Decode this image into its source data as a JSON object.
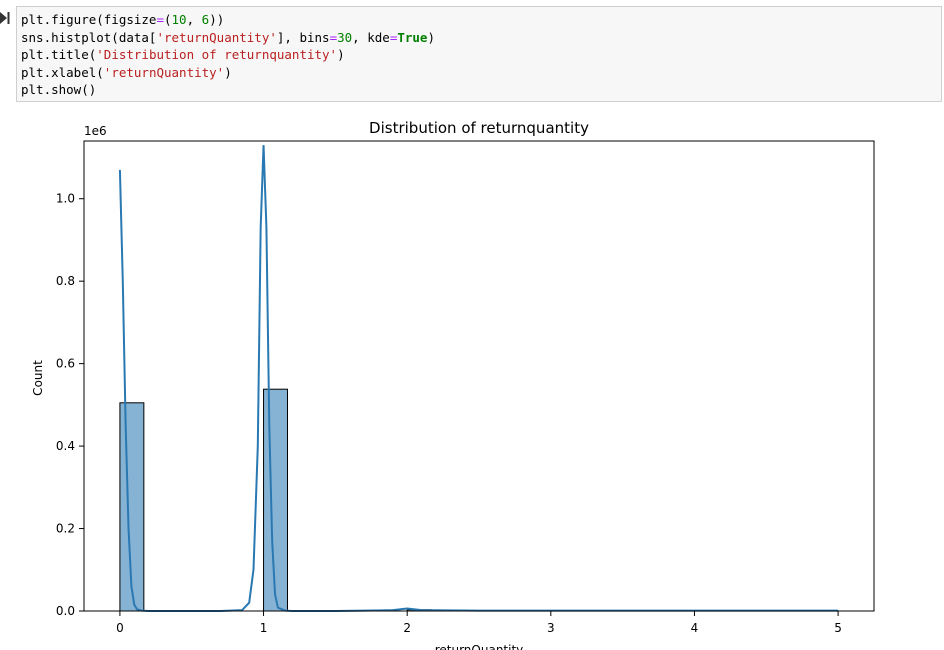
{
  "notebook": {
    "code_lines": [
      [
        "plt.figure(figsize",
        "=",
        "(",
        "10",
        ", ",
        "6",
        "))"
      ],
      [
        "sns.histplot(data[",
        "'returnQuantity'",
        "], bins",
        "=",
        "30",
        ", kde",
        "=",
        "True",
        ")"
      ],
      [
        "plt.title(",
        "'Distribution of returnquantity'",
        ")"
      ],
      [
        "plt.xlabel(",
        "'returnQuantity'",
        ")"
      ],
      [
        "plt.show()"
      ]
    ]
  },
  "chart_data": {
    "type": "bar",
    "title": "Distribution of returnquantity",
    "xlabel": "returnQuantity",
    "ylabel": "Count",
    "y_offset_label": "1e6",
    "x_ticks": [
      0,
      1,
      2,
      3,
      4,
      5
    ],
    "y_ticks": [
      "0.0",
      "0.2",
      "0.4",
      "0.6",
      "0.8",
      "1.0"
    ],
    "xlim": [
      -0.25,
      5.25
    ],
    "ylim": [
      0,
      1.14
    ],
    "bin_width": 0.1667,
    "bins": [
      {
        "x0": 0.0,
        "x1": 0.1667,
        "count": 0.505
      },
      {
        "x0": 1.0,
        "x1": 1.1667,
        "count": 0.538
      },
      {
        "x0": 2.0,
        "x1": 2.1667,
        "count": 0.003
      }
    ],
    "kde": {
      "x": [
        0.0,
        0.02,
        0.04,
        0.06,
        0.08,
        0.1,
        0.12,
        0.15,
        0.2,
        0.3,
        0.5,
        0.7,
        0.85,
        0.9,
        0.93,
        0.96,
        0.98,
        1.0,
        1.02,
        1.04,
        1.06,
        1.08,
        1.1,
        1.15,
        1.2,
        1.5,
        1.9,
        2.0,
        2.1,
        2.5,
        3.0,
        4.0,
        5.0
      ],
      "y": [
        1.07,
        0.8,
        0.45,
        0.2,
        0.06,
        0.015,
        0.004,
        0.001,
        0.0,
        0.0,
        0.0,
        0.0,
        0.002,
        0.02,
        0.1,
        0.4,
        0.93,
        1.13,
        0.93,
        0.45,
        0.17,
        0.04,
        0.008,
        0.001,
        0.0,
        0.0,
        0.002,
        0.006,
        0.002,
        0.001,
        0.001,
        0.001,
        0.001
      ]
    },
    "colors": {
      "bar_fill": "#86b3d4",
      "bar_edge": "#000000",
      "kde_line": "#2a78b2"
    },
    "grid": false,
    "legend": "none"
  }
}
